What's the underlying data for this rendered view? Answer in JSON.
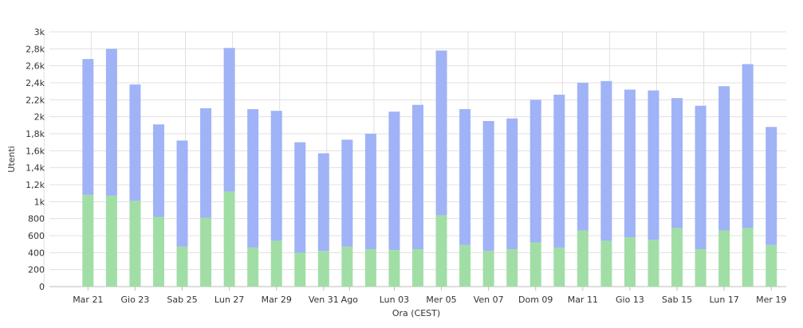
{
  "chart_data": {
    "type": "bar",
    "stacked": true,
    "xlabel": "Ora (CEST)",
    "ylabel": "Utenti",
    "ylim": [
      0,
      3000
    ],
    "yticks": [
      "0",
      "200",
      "400",
      "600",
      "800",
      "1k",
      "1,2k",
      "1,4k",
      "1,6k",
      "1,8k",
      "2k",
      "2,2k",
      "2,4k",
      "2,6k",
      "2,8k",
      "3k"
    ],
    "xticks": [
      "Mar 21",
      "Gio 23",
      "Sab 25",
      "Lun 27",
      "Mar 29",
      "Ven 31",
      "Ago",
      "Lun 03",
      "Mer 05",
      "Ven 07",
      "Dom 09",
      "Mar 11",
      "Gio 13",
      "Sab 15",
      "Lun 17",
      "Mer 19"
    ],
    "grid": true,
    "legend": "none",
    "colors": {
      "green": "#a1dea6",
      "blue": "#9fb3f6",
      "grid": "#e0e0e0",
      "axis": "#333333"
    },
    "series": [
      {
        "values": [
          0,
          1080,
          1070,
          1010,
          820,
          470,
          810,
          1120,
          460,
          540,
          400,
          420,
          470,
          440,
          430,
          440,
          840,
          490,
          420,
          440,
          520,
          460,
          660,
          540,
          580,
          550,
          690,
          440,
          660,
          690,
          490
        ]
      },
      {
        "values": [
          0,
          1600,
          1730,
          1370,
          1090,
          1250,
          1290,
          1690,
          1630,
          1530,
          1300,
          1150,
          1260,
          1360,
          1630,
          1700,
          1940,
          1600,
          1530,
          1540,
          1680,
          1800,
          1740,
          1880,
          1740,
          1760,
          1530,
          1690,
          1700,
          1930,
          1390
        ]
      }
    ]
  }
}
